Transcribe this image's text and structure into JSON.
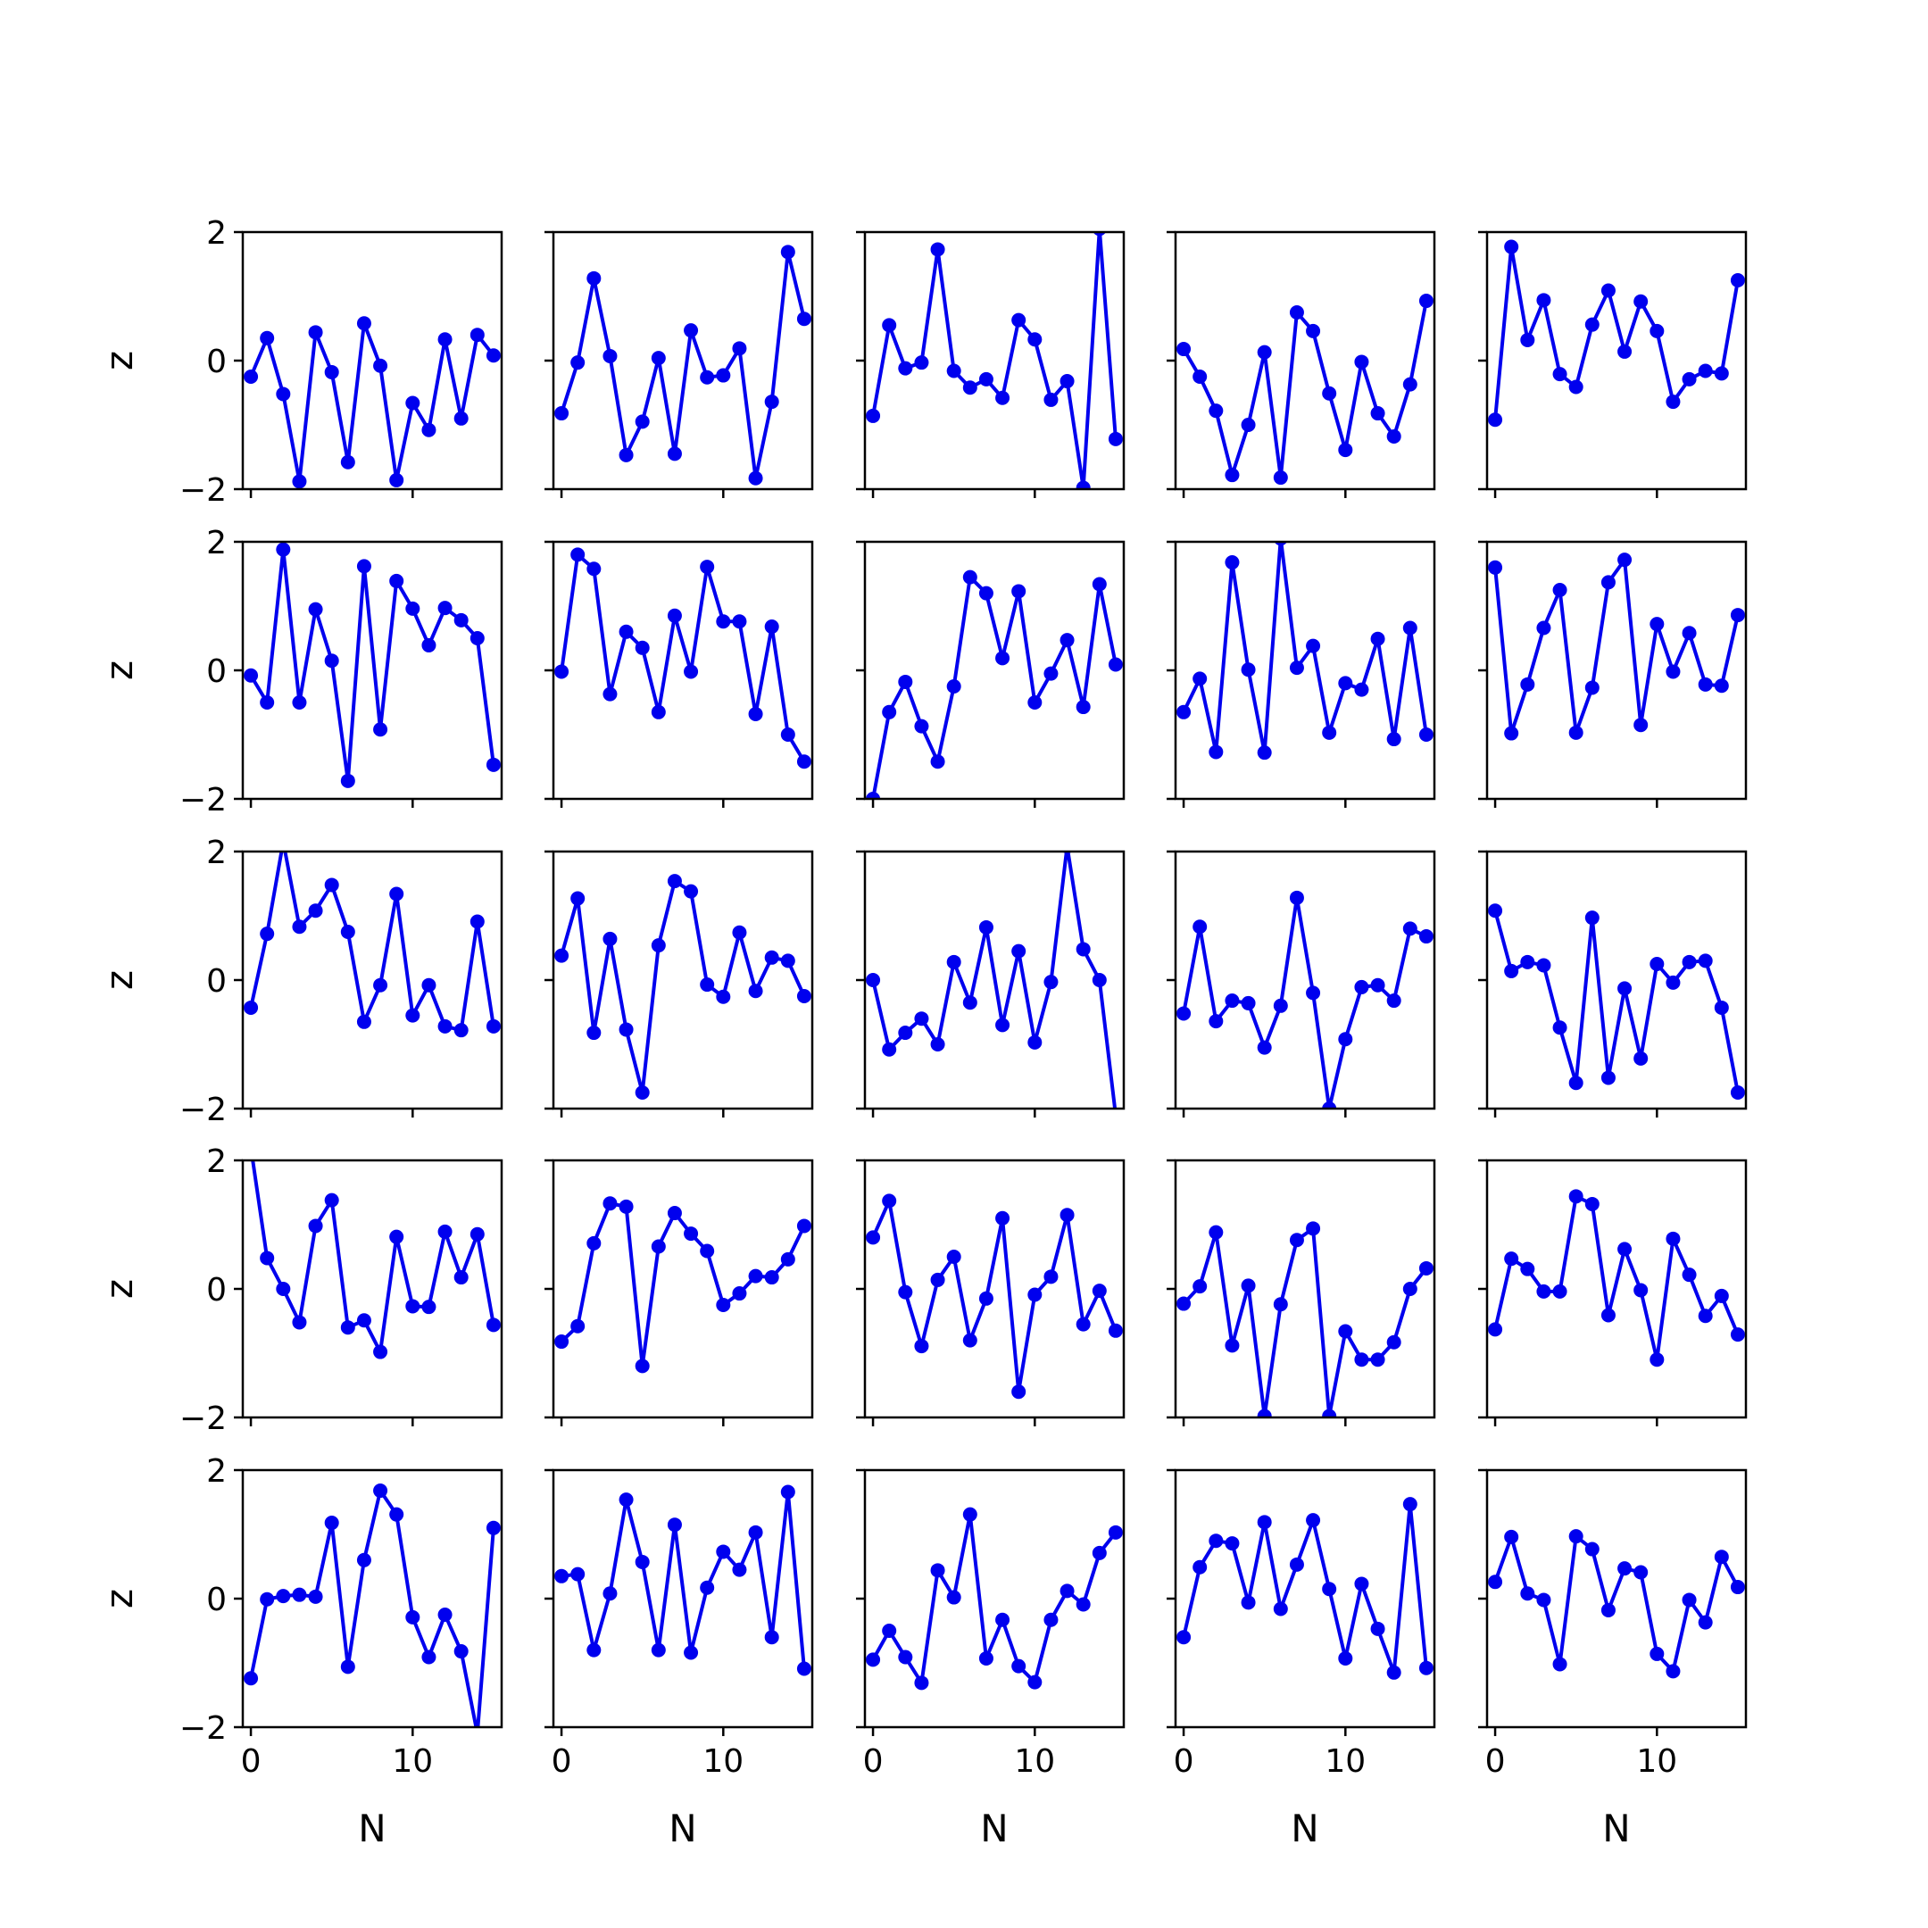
{
  "chart_data": {
    "type": "line",
    "layout": {
      "rows": 5,
      "cols": 5
    },
    "line_color": "#0000ee",
    "marker": "circle",
    "grid": false,
    "xlabel": "N",
    "ylabel": "z",
    "xlim": [
      -0.5,
      15.5
    ],
    "ylim": [
      -2,
      2
    ],
    "xticks": [
      0,
      10
    ],
    "yticks": [
      -2,
      0,
      2
    ],
    "xtick_labels": [
      "0",
      "10"
    ],
    "ytick_labels": [
      "−2",
      "0",
      "2"
    ],
    "x": [
      0,
      1,
      2,
      3,
      4,
      5,
      6,
      7,
      8,
      9,
      10,
      11,
      12,
      13,
      14,
      15
    ],
    "panels": [
      {
        "values": [
          -0.25,
          0.35,
          -0.52,
          -1.88,
          0.44,
          -0.18,
          -1.58,
          0.58,
          -0.08,
          -1.86,
          -0.66,
          -1.08,
          0.33,
          -0.9,
          0.4,
          0.08
        ]
      },
      {
        "values": [
          -0.82,
          -0.03,
          1.28,
          0.07,
          -1.47,
          -0.95,
          0.04,
          -1.45,
          0.47,
          -0.26,
          -0.23,
          0.19,
          -1.83,
          -0.64,
          1.69,
          0.65
        ]
      },
      {
        "values": [
          -0.86,
          0.55,
          -0.12,
          -0.03,
          1.73,
          -0.16,
          -0.42,
          -0.29,
          -0.58,
          0.63,
          0.33,
          -0.61,
          -0.32,
          -1.98,
          2.05,
          -1.22
        ]
      },
      {
        "values": [
          0.18,
          -0.25,
          -0.78,
          -1.78,
          -1.0,
          0.13,
          -1.82,
          0.75,
          0.46,
          -0.51,
          -1.39,
          -0.02,
          -0.82,
          -1.18,
          -0.37,
          0.93
        ]
      },
      {
        "values": [
          -0.92,
          1.77,
          0.32,
          0.94,
          -0.21,
          -0.41,
          0.56,
          1.09,
          0.14,
          0.92,
          0.46,
          -0.64,
          -0.29,
          -0.16,
          -0.2,
          1.25
        ]
      },
      {
        "values": [
          -0.08,
          -0.5,
          1.88,
          -0.5,
          0.95,
          0.15,
          -1.72,
          1.62,
          -0.92,
          1.39,
          0.96,
          0.39,
          0.97,
          0.78,
          0.5,
          -1.47
        ]
      },
      {
        "values": [
          -0.02,
          1.8,
          1.58,
          -0.37,
          0.6,
          0.35,
          -0.65,
          0.85,
          -0.02,
          1.61,
          0.76,
          0.76,
          -0.68,
          0.68,
          -1.0,
          -1.42
        ]
      },
      {
        "values": [
          -2.0,
          -0.65,
          -0.18,
          -0.87,
          -1.42,
          -0.25,
          1.45,
          1.2,
          0.19,
          1.23,
          -0.5,
          -0.05,
          0.47,
          -0.57,
          1.34,
          0.09
        ]
      },
      {
        "values": [
          -0.65,
          -0.13,
          -1.27,
          1.68,
          0.01,
          -1.28,
          2.05,
          0.04,
          0.38,
          -0.97,
          -0.2,
          -0.3,
          0.49,
          -1.07,
          0.66,
          -1.0
        ]
      },
      {
        "values": [
          1.6,
          -0.98,
          -0.22,
          0.66,
          1.25,
          -0.97,
          -0.27,
          1.37,
          1.72,
          -0.85,
          0.72,
          -0.02,
          0.58,
          -0.22,
          -0.24,
          0.86
        ]
      },
      {
        "values": [
          -0.43,
          0.72,
          2.15,
          0.83,
          1.08,
          1.48,
          0.75,
          -0.65,
          -0.08,
          1.34,
          -0.55,
          -0.08,
          -0.72,
          -0.78,
          0.91,
          -0.72
        ]
      },
      {
        "values": [
          0.38,
          1.27,
          -0.82,
          0.64,
          -0.77,
          -1.75,
          0.54,
          1.54,
          1.38,
          -0.07,
          -0.26,
          0.74,
          -0.17,
          0.35,
          0.3,
          -0.25
        ]
      },
      {
        "values": [
          0.0,
          -1.08,
          -0.82,
          -0.6,
          -1.0,
          0.28,
          -0.35,
          0.82,
          -0.7,
          0.45,
          -0.97,
          -0.03,
          2.08,
          0.48,
          0.0,
          -2.1
        ]
      },
      {
        "values": [
          -0.52,
          0.83,
          -0.64,
          -0.32,
          -0.36,
          -1.05,
          -0.4,
          1.28,
          -0.2,
          -2.0,
          -0.92,
          -0.11,
          -0.08,
          -0.32,
          0.8,
          0.68
        ]
      },
      {
        "values": [
          1.08,
          0.14,
          0.28,
          0.23,
          -0.74,
          -1.6,
          0.97,
          -1.52,
          -0.13,
          -1.22,
          0.25,
          -0.04,
          0.28,
          0.3,
          -0.43,
          -1.75
        ]
      },
      {
        "values": [
          2.2,
          0.48,
          0.0,
          -0.52,
          0.98,
          1.38,
          -0.6,
          -0.49,
          -0.98,
          0.81,
          -0.27,
          -0.28,
          0.89,
          0.18,
          0.85,
          -0.56
        ]
      },
      {
        "values": [
          -0.82,
          -0.58,
          0.71,
          1.33,
          1.28,
          -1.2,
          0.66,
          1.18,
          0.86,
          0.59,
          -0.25,
          -0.07,
          0.2,
          0.18,
          0.46,
          0.98
        ]
      },
      {
        "values": [
          0.8,
          1.37,
          -0.05,
          -0.89,
          0.14,
          0.5,
          -0.8,
          -0.15,
          1.1,
          -1.6,
          -0.09,
          0.19,
          1.15,
          -0.55,
          -0.03,
          -0.65
        ]
      },
      {
        "values": [
          -0.23,
          0.04,
          0.88,
          -0.88,
          0.05,
          -1.98,
          -0.24,
          0.76,
          0.94,
          -1.98,
          -0.66,
          -1.1,
          -1.1,
          -0.83,
          0.0,
          0.32
        ]
      },
      {
        "values": [
          -0.63,
          0.47,
          0.31,
          -0.04,
          -0.04,
          1.44,
          1.32,
          -0.41,
          0.62,
          -0.02,
          -1.1,
          0.78,
          0.22,
          -0.42,
          -0.11,
          -0.71
        ]
      },
      {
        "values": [
          -1.24,
          -0.01,
          0.04,
          0.06,
          0.03,
          1.18,
          -1.06,
          0.6,
          1.68,
          1.31,
          -0.29,
          -0.91,
          -0.25,
          -0.82,
          -2.1,
          1.1
        ]
      },
      {
        "values": [
          0.35,
          0.38,
          -0.8,
          0.08,
          1.54,
          0.57,
          -0.8,
          1.15,
          -0.84,
          0.17,
          0.73,
          0.45,
          1.03,
          -0.6,
          1.66,
          -1.09
        ]
      },
      {
        "values": [
          -0.95,
          -0.5,
          -0.91,
          -1.31,
          0.44,
          0.02,
          1.31,
          -0.93,
          -0.33,
          -1.05,
          -1.3,
          -0.33,
          0.12,
          -0.09,
          0.71,
          1.03
        ]
      },
      {
        "values": [
          -0.6,
          0.49,
          0.9,
          0.86,
          -0.06,
          1.19,
          -0.16,
          0.53,
          1.22,
          0.15,
          -0.93,
          0.23,
          -0.47,
          -1.15,
          1.47,
          -1.08
        ]
      },
      {
        "values": [
          0.26,
          0.96,
          0.08,
          -0.02,
          -1.02,
          0.97,
          0.77,
          -0.18,
          0.47,
          0.41,
          -0.86,
          -1.13,
          -0.02,
          -0.37,
          0.65,
          0.18
        ]
      }
    ]
  }
}
